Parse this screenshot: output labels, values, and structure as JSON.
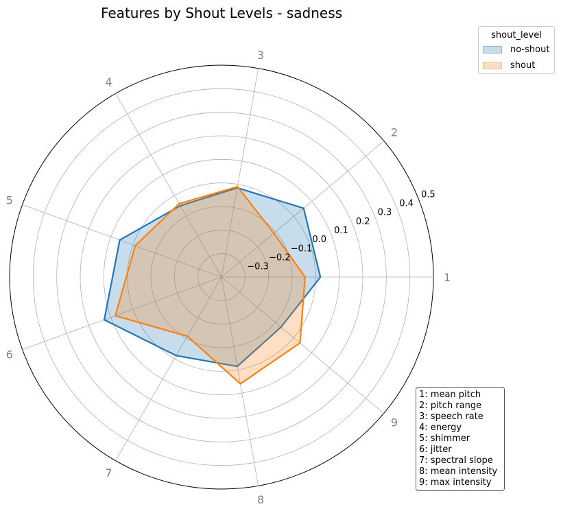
{
  "chart_data": {
    "type": "radar",
    "title": "Features by Shout Levels - sadness",
    "categories": [
      "1",
      "2",
      "3",
      "4",
      "5",
      "6",
      "7",
      "8",
      "9"
    ],
    "radial_ticks": [
      "−0.3",
      "−0.2",
      "−0.1",
      "0.0",
      "0.1",
      "0.2",
      "0.3",
      "0.4",
      "0.5"
    ],
    "rlim": [
      -0.4,
      0.5
    ],
    "series": [
      {
        "name": "no-shout",
        "color": "#1f77b4",
        "values": [
          0.02,
          0.055,
          -0.015,
          -0.05,
          0.06,
          0.13,
          -0.015,
          -0.015,
          -0.07
        ]
      },
      {
        "name": "shout",
        "color": "#ff7f0e",
        "values": [
          -0.045,
          -0.11,
          -0.01,
          -0.04,
          -0.01,
          0.08,
          -0.11,
          0.06,
          0.035
        ]
      }
    ],
    "legend": {
      "title": "shout_level",
      "placement": "top-right"
    },
    "key": [
      "1: mean pitch",
      "2: pitch range",
      "3: speech rate",
      "4: energy",
      "5: shimmer",
      "6: jitter",
      "7: spectral slope",
      "8: mean intensity",
      "9: max intensity"
    ],
    "grid": true
  }
}
